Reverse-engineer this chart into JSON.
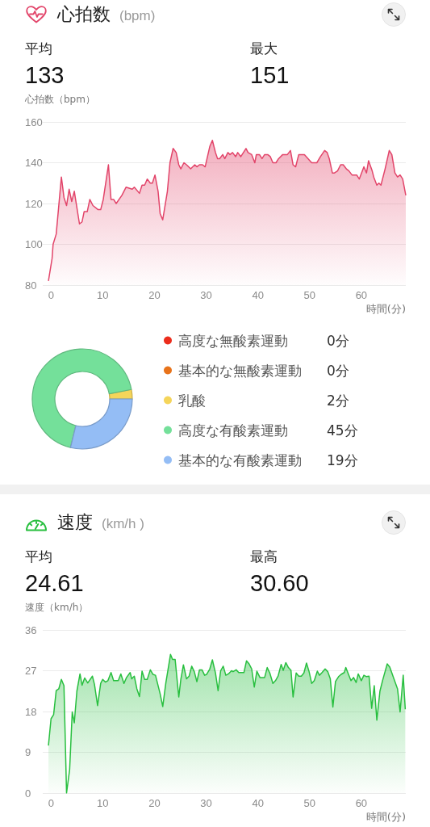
{
  "chart_data": [
    {
      "type": "area",
      "title": "心拍数",
      "subtitle": "(bpm)",
      "annotations": [
        "平均",
        "133",
        "最大",
        "151"
      ],
      "ylabel": "心拍数（bpm）",
      "xlabel": "時間(分)",
      "x": [
        -0.5,
        0.2,
        0.4,
        1,
        2,
        2.5,
        3,
        3.5,
        4,
        4.5,
        5.5,
        6,
        6.4,
        7,
        7.5,
        8.1,
        9.1,
        9.6,
        10.1,
        11.1,
        11.6,
        12.1,
        12.6,
        13.7,
        14.5,
        15.7,
        16.1,
        17.1,
        17.6,
        18.1,
        18.6,
        19.2,
        19.6,
        20.1,
        20.7,
        21.1,
        21.6,
        22.5,
        23,
        23.6,
        24.2,
        24.7,
        25.1,
        25.7,
        26.2,
        27,
        27.8,
        28.2,
        28.7,
        29.3,
        29.8,
        30.7,
        31.2,
        31.8,
        32.2,
        32.6,
        33.2,
        33.6,
        34.2,
        34.6,
        35.1,
        35.7,
        36.1,
        36.7,
        37.7,
        38.1,
        38.8,
        39.4,
        39.7,
        40.3,
        40.8,
        41.3,
        41.9,
        42.4,
        42.9,
        43.5,
        44,
        44.8,
        45.7,
        46.3,
        46.8,
        47.3,
        47.9,
        49,
        49.7,
        50.4,
        51.4,
        52.1,
        52.9,
        53.4,
        53.8,
        54.4,
        54.8,
        55.4,
        56,
        56.5,
        57.1,
        57.6,
        58.2,
        58.7,
        59.1,
        59.6,
        60.5,
        61,
        61.4,
        62.1,
        62.4,
        63,
        63.4,
        63.8,
        64.6,
        65.4,
        65.9,
        66.5,
        67,
        67.5,
        68,
        68.6
      ],
      "values": [
        82,
        93,
        100,
        105,
        133,
        123,
        119,
        127,
        121,
        126,
        110,
        111,
        116,
        116,
        122,
        119,
        117,
        117,
        122,
        139,
        122,
        122,
        120,
        124,
        128,
        127,
        128,
        125,
        129,
        129,
        132,
        130,
        130,
        134,
        126,
        115,
        112,
        126,
        140,
        147,
        145,
        139,
        137,
        140,
        139,
        137,
        139,
        138,
        139,
        139,
        138,
        148,
        151,
        145,
        142,
        142,
        144,
        142,
        145,
        144,
        145,
        143,
        145,
        143,
        147,
        145,
        144,
        140,
        144,
        144,
        142,
        144,
        144,
        143,
        140,
        140,
        142,
        144,
        144,
        146,
        139,
        138,
        144,
        144,
        142,
        140,
        140,
        143,
        146,
        145,
        142,
        135,
        135,
        136,
        139,
        139,
        137,
        136,
        134,
        134,
        134,
        132,
        138,
        135,
        141,
        136,
        133,
        129,
        130,
        129,
        137,
        146,
        144,
        135,
        133,
        134,
        132,
        124
      ],
      "color": "#e2456a",
      "xlim": [
        -1.6,
        68.6
      ],
      "xticks": [
        0,
        10,
        20,
        30,
        40,
        50,
        60
      ],
      "ylim": [
        80,
        160
      ],
      "yticks": [
        80,
        100,
        120,
        140,
        160
      ],
      "grid": "y"
    },
    {
      "type": "donut",
      "categories": [
        "高度な無酸素運動",
        "基本的な無酸素運動",
        "乳酸",
        "高度な有酸素運動",
        "基本的な有酸素運動"
      ],
      "values": [
        0,
        0,
        2,
        45,
        19
      ],
      "colors": [
        "#ec2d1c",
        "#e8731a",
        "#f5d55a",
        "#74e09a",
        "#94bdf5"
      ],
      "value_labels": [
        "0分",
        "0分",
        "2分",
        "45分",
        "19分"
      ],
      "legend": "right"
    },
    {
      "type": "area",
      "title": "速度",
      "subtitle": "(km/h )",
      "annotations": [
        "平均",
        "24.61",
        "最高",
        "30.60"
      ],
      "ylabel": "速度（km/h）",
      "xlabel": "時間(分)",
      "x": [
        -0.5,
        0,
        0.5,
        1,
        1.5,
        2,
        2.5,
        3,
        3.6,
        4.1,
        4.5,
        5,
        5.6,
        6,
        6.5,
        7.1,
        8,
        8.4,
        9,
        9.6,
        10,
        10.5,
        11,
        11.6,
        12.1,
        13,
        13.5,
        14.1,
        14.6,
        15.3,
        15.6,
        16.1,
        16.6,
        17.1,
        17.6,
        18.1,
        18.6,
        19.2,
        19.7,
        20.2,
        21.1,
        21.6,
        22.2,
        23.1,
        23.5,
        24,
        24.7,
        25.1,
        25.6,
        26.2,
        26.7,
        27.2,
        27.7,
        28.2,
        28.7,
        29.2,
        29.7,
        30.1,
        30.7,
        31.2,
        31.8,
        32.3,
        32.8,
        33.3,
        33.8,
        34.3,
        34.9,
        35.2,
        35.8,
        36.3,
        37.3,
        37.8,
        38.3,
        38.8,
        39.3,
        39.8,
        40.4,
        41.3,
        41.8,
        42.3,
        42.9,
        43.4,
        43.9,
        44.5,
        44.9,
        45.4,
        45.9,
        46.4,
        46.8,
        47.4,
        47.9,
        48.4,
        48.9,
        49.4,
        49.9,
        50.4,
        50.9,
        51.5,
        51.9,
        52.4,
        53,
        53.5,
        54,
        54.5,
        55,
        55.6,
        56.1,
        56.7,
        57,
        58,
        58.5,
        59,
        59.4,
        60,
        60.5,
        61,
        61.5,
        62,
        62.5,
        63,
        63.6,
        64.1,
        65,
        65.5,
        67,
        67.5,
        68.1,
        68.5
      ],
      "values": [
        10.5,
        16.4,
        17.3,
        22.6,
        23.0,
        25.1,
        23.7,
        0,
        5.2,
        17.9,
        15.5,
        22.5,
        26.3,
        23.8,
        25.4,
        24.3,
        25.8,
        24.0,
        19.3,
        24.2,
        25.1,
        24.5,
        24.8,
        26.6,
        24.8,
        24.8,
        26.3,
        24.2,
        25.5,
        26.6,
        25.2,
        25.8,
        23.0,
        21.3,
        26.9,
        25.1,
        25.1,
        27.2,
        26.2,
        26.0,
        21.9,
        19.1,
        24.3,
        30.6,
        29.5,
        29.5,
        21.2,
        25.1,
        28.3,
        25.2,
        25.8,
        28.0,
        26.8,
        24.6,
        27.2,
        27.2,
        26.0,
        26.2,
        27.4,
        29.4,
        26.5,
        22.6,
        27.0,
        28.0,
        26.0,
        26.3,
        27.0,
        26.8,
        27.2,
        26.6,
        26.6,
        29.2,
        28.5,
        27.4,
        23.4,
        26.9,
        25.5,
        25.5,
        27.7,
        26.5,
        24.2,
        24.8,
        25.8,
        28.4,
        27.1,
        28.8,
        27.7,
        27.1,
        21.2,
        26.5,
        25.8,
        25.8,
        26.5,
        28.7,
        26.8,
        24.2,
        24.8,
        26.9,
        26.0,
        26.6,
        27.4,
        26.8,
        25.2,
        19.0,
        24.6,
        25.7,
        26.2,
        26.6,
        27.7,
        24.8,
        25.5,
        24.4,
        26.3,
        24.8,
        26.0,
        25.7,
        25.8,
        18.7,
        23.7,
        16.1,
        22.5,
        24.8,
        28.5,
        27.8,
        23.0,
        17.9,
        26.0,
        18.5
      ],
      "color": "#28bf3f",
      "xlim": [
        -1.6,
        68.6
      ],
      "xticks": [
        0,
        10,
        20,
        30,
        40,
        50,
        60
      ],
      "ylim": [
        0,
        36
      ],
      "yticks": [
        0,
        9,
        18,
        27,
        36
      ],
      "grid": "y"
    }
  ]
}
